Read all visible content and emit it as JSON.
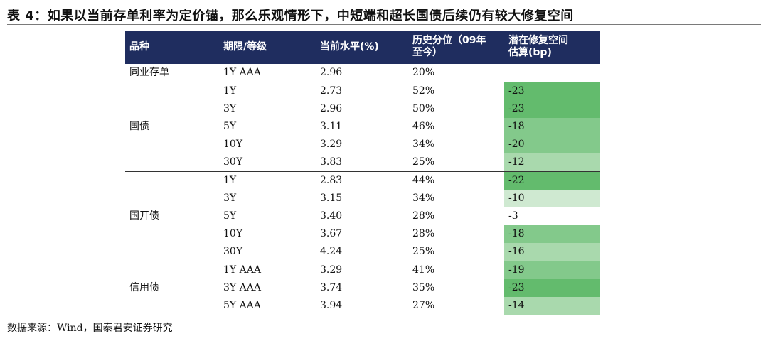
{
  "title": "表 4：如果以当前存单利率为定价锚，那么乐观情形下，中短端和超长国债后续仍有较大修复空间",
  "header": {
    "col1": "品种",
    "col2": "期限/等级",
    "col3": "当前水平(%)",
    "col4_line1": "历史分位（09年",
    "col4_line2": "至今）",
    "col5_line1": "潜在修复空间",
    "col5_line2": "估算(bp)"
  },
  "colors": {
    "header_bg": "#1f2d5f",
    "green_strong": "#63bb6d",
    "green_mid": "#83c98b",
    "green_light": "#a9d9ad",
    "green_pale": "#cfe9d1"
  },
  "groups": [
    {
      "name": "同业存单",
      "rows": [
        {
          "term": "1Y AAA",
          "level": "2.96",
          "pct": "20%",
          "space": ""
        }
      ]
    },
    {
      "name": "国债",
      "rows": [
        {
          "term": "1Y",
          "level": "2.73",
          "pct": "52%",
          "space": "-23"
        },
        {
          "term": "3Y",
          "level": "2.96",
          "pct": "50%",
          "space": "-23"
        },
        {
          "term": "5Y",
          "level": "3.11",
          "pct": "46%",
          "space": "-18"
        },
        {
          "term": "10Y",
          "level": "3.29",
          "pct": "34%",
          "space": "-20"
        },
        {
          "term": "30Y",
          "level": "3.83",
          "pct": "25%",
          "space": "-12"
        }
      ]
    },
    {
      "name": "国开债",
      "rows": [
        {
          "term": "1Y",
          "level": "2.83",
          "pct": "44%",
          "space": "-22"
        },
        {
          "term": "3Y",
          "level": "3.15",
          "pct": "34%",
          "space": "-10"
        },
        {
          "term": "5Y",
          "level": "3.40",
          "pct": "28%",
          "space": "-3"
        },
        {
          "term": "10Y",
          "level": "3.67",
          "pct": "28%",
          "space": "-18"
        },
        {
          "term": "30Y",
          "level": "4.24",
          "pct": "25%",
          "space": "-16"
        }
      ]
    },
    {
      "name": "信用债",
      "rows": [
        {
          "term": "1Y AAA",
          "level": "3.29",
          "pct": "41%",
          "space": "-19"
        },
        {
          "term": "3Y AAA",
          "level": "3.74",
          "pct": "35%",
          "space": "-23"
        },
        {
          "term": "5Y AAA",
          "level": "3.94",
          "pct": "27%",
          "space": "-14"
        }
      ]
    }
  ],
  "source": "数据来源：Wind，国泰君安证券研究"
}
